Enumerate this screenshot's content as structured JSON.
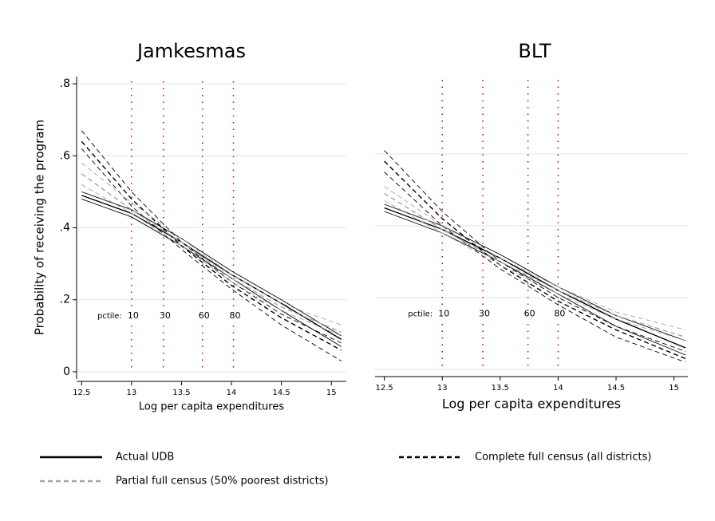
{
  "chart_data": [
    {
      "type": "line",
      "title": "Jamkesmas",
      "x_label": "Log per capita expenditures",
      "y_label": "Probability of receiving the program",
      "x": [
        12.5,
        13,
        13.5,
        14,
        14.5,
        15.1
      ],
      "xlim": [
        12.45,
        15.15
      ],
      "ylim": [
        -0.02,
        0.82
      ],
      "xticks": [
        12.5,
        13,
        13.5,
        14,
        14.5,
        15
      ],
      "yticks": [
        0,
        {
          "value": 0.2,
          "label": ".2"
        },
        {
          "value": 0.4,
          "label": ".4"
        },
        {
          "value": 0.6,
          "label": ".6"
        },
        {
          "value": 0.8,
          "label": ".8"
        }
      ],
      "ytick_labels": true,
      "grid": true,
      "pctile_label": "pctile:",
      "pctile_color": "#cc0000",
      "pctiles": [
        {
          "x": 13.0,
          "label": 10
        },
        {
          "x": 13.32,
          "label": 30
        },
        {
          "x": 13.71,
          "label": 60
        },
        {
          "x": 14.02,
          "label": 80
        }
      ],
      "series": [
        {
          "name": "Actual UDB",
          "color": "#000000",
          "dash": "none",
          "values": [
            0.49,
            0.44,
            0.36,
            0.27,
            0.19,
            0.09
          ],
          "lower": [
            0.48,
            0.43,
            0.35,
            0.26,
            0.17,
            0.07
          ],
          "upper": [
            0.5,
            0.45,
            0.37,
            0.28,
            0.2,
            0.1
          ]
        },
        {
          "name": "Complete full census (all districts)",
          "color": "#000000",
          "dash": "6 4",
          "values": [
            0.64,
            0.48,
            0.35,
            0.24,
            0.15,
            0.06
          ],
          "lower": [
            0.62,
            0.46,
            0.34,
            0.23,
            0.13,
            0.03
          ],
          "upper": [
            0.67,
            0.5,
            0.36,
            0.25,
            0.16,
            0.08
          ]
        },
        {
          "name": "Partial full census (50% poorest districts)",
          "color": "#a6a6a6",
          "dash": "6 4",
          "values": [
            0.55,
            0.45,
            0.36,
            0.26,
            0.18,
            0.11
          ],
          "lower": [
            0.52,
            0.44,
            0.35,
            0.25,
            0.17,
            0.1
          ],
          "upper": [
            0.58,
            0.47,
            0.37,
            0.27,
            0.19,
            0.13
          ]
        }
      ]
    },
    {
      "type": "line",
      "title": "BLT",
      "x_label": "Log per capita expenditures",
      "x": [
        12.5,
        13,
        13.5,
        14,
        14.5,
        15.1
      ],
      "xlim": [
        12.42,
        15.12
      ],
      "ylim": [
        -0.02,
        0.82
      ],
      "xticks": [
        12.5,
        13,
        13.5,
        14,
        14.5,
        15
      ],
      "yticks": [
        0,
        0.2,
        0.4,
        0.6
      ],
      "ytick_labels": false,
      "grid": true,
      "pctile_label": "pctile:",
      "pctile_color": "#cc0000",
      "pctiles": [
        {
          "x": 13.0,
          "label": 10
        },
        {
          "x": 13.35,
          "label": 30
        },
        {
          "x": 13.74,
          "label": 60
        },
        {
          "x": 14.0,
          "label": 80
        }
      ],
      "series": [
        {
          "color": "#000000",
          "dash": "none",
          "values": [
            0.45,
            0.39,
            0.31,
            0.22,
            0.14,
            0.06
          ],
          "lower": [
            0.44,
            0.38,
            0.3,
            0.21,
            0.12,
            0.04
          ],
          "upper": [
            0.46,
            0.4,
            0.32,
            0.23,
            0.15,
            0.08
          ]
        },
        {
          "color": "#000000",
          "dash": "6 4",
          "values": [
            0.58,
            0.42,
            0.29,
            0.19,
            0.11,
            0.03
          ],
          "lower": [
            0.55,
            0.4,
            0.28,
            0.18,
            0.09,
            0.02
          ],
          "upper": [
            0.61,
            0.44,
            0.3,
            0.2,
            0.12,
            0.05
          ]
        },
        {
          "color": "#a6a6a6",
          "dash": "6 4",
          "values": [
            0.49,
            0.39,
            0.3,
            0.22,
            0.15,
            0.09
          ],
          "lower": [
            0.47,
            0.38,
            0.29,
            0.21,
            0.14,
            0.08
          ],
          "upper": [
            0.51,
            0.4,
            0.31,
            0.23,
            0.16,
            0.11
          ]
        }
      ]
    }
  ]
}
